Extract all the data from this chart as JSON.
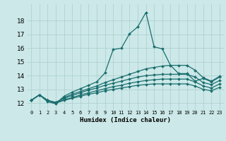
{
  "xlabel": "Humidex (Indice chaleur)",
  "ylabel": "",
  "bg_color": "#cce8e8",
  "grid_color": "#aacece",
  "line_color": "#1a6e6e",
  "xlim": [
    -0.5,
    23.5
  ],
  "ylim": [
    11.5,
    19.2
  ],
  "yticks": [
    12,
    13,
    14,
    15,
    16,
    17,
    18
  ],
  "xticks": [
    0,
    1,
    2,
    3,
    4,
    5,
    6,
    7,
    8,
    9,
    10,
    11,
    12,
    13,
    14,
    15,
    16,
    17,
    18,
    19,
    20,
    21,
    22,
    23
  ],
  "series": [
    [
      12.2,
      12.6,
      12.1,
      11.95,
      12.5,
      12.8,
      13.05,
      13.3,
      13.55,
      14.2,
      15.9,
      16.0,
      17.05,
      17.55,
      18.6,
      16.1,
      15.95,
      14.75,
      14.15,
      14.15,
      13.6,
      13.8,
      13.55,
      13.9
    ],
    [
      12.2,
      12.6,
      12.2,
      12.05,
      12.4,
      12.65,
      12.85,
      13.05,
      13.25,
      13.5,
      13.7,
      13.9,
      14.1,
      14.3,
      14.5,
      14.6,
      14.7,
      14.75,
      14.75,
      14.75,
      14.4,
      13.85,
      13.6,
      13.95
    ],
    [
      12.2,
      12.6,
      12.2,
      12.05,
      12.35,
      12.55,
      12.75,
      12.95,
      13.1,
      13.3,
      13.45,
      13.6,
      13.75,
      13.9,
      14.0,
      14.05,
      14.1,
      14.1,
      14.1,
      14.1,
      13.9,
      13.5,
      13.35,
      13.65
    ],
    [
      12.2,
      12.6,
      12.2,
      12.0,
      12.25,
      12.4,
      12.6,
      12.75,
      12.9,
      13.05,
      13.2,
      13.3,
      13.45,
      13.55,
      13.65,
      13.7,
      13.75,
      13.75,
      13.75,
      13.75,
      13.55,
      13.25,
      13.1,
      13.4
    ],
    [
      12.2,
      12.6,
      12.2,
      12.0,
      12.2,
      12.35,
      12.5,
      12.65,
      12.75,
      12.9,
      13.0,
      13.1,
      13.2,
      13.3,
      13.35,
      13.4,
      13.4,
      13.4,
      13.4,
      13.4,
      13.25,
      13.0,
      12.9,
      13.15
    ]
  ],
  "xtick_fontsize": 5.0,
  "ytick_fontsize": 6.5,
  "xlabel_fontsize": 6.5,
  "marker_size": 2.0,
  "linewidth": 0.9
}
